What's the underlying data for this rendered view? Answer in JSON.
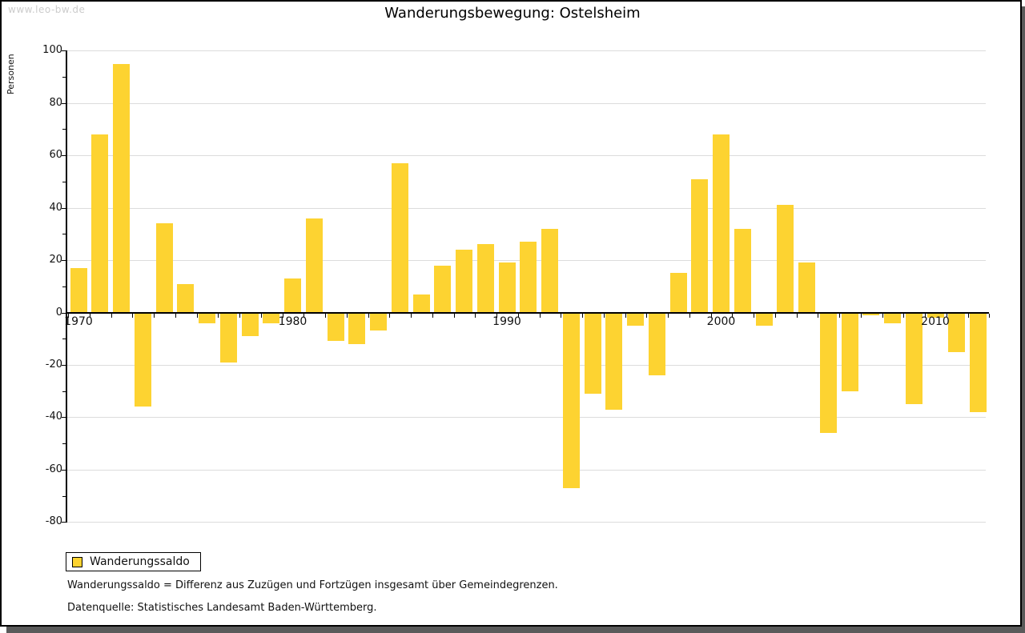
{
  "watermark": "www.leo-bw.de",
  "title": "Wanderungsbewegung: Ostelsheim",
  "y_axis_label": "Personen",
  "legend": {
    "label": "Wanderungssaldo"
  },
  "footnotes": [
    "Wanderungssaldo = Differenz aus Zuzügen und Fortzügen insgesamt über Gemeindegrenzen.",
    "Datenquelle: Statistisches Landesamt Baden-Württemberg."
  ],
  "colors": {
    "bar": "#fdd331",
    "grid": "#dcdcdc",
    "axis": "#000000",
    "text": "#111111",
    "watermark": "#cccccc",
    "shadow": "#5a5a5a",
    "background": "#ffffff"
  },
  "chart_data": {
    "type": "bar",
    "title": "Wanderungsbewegung: Ostelsheim",
    "xlabel": "",
    "ylabel": "Personen",
    "series_name": "Wanderungssaldo",
    "categories": [
      1970,
      1971,
      1972,
      1973,
      1974,
      1975,
      1976,
      1977,
      1978,
      1979,
      1980,
      1981,
      1982,
      1983,
      1984,
      1985,
      1986,
      1987,
      1988,
      1989,
      1990,
      1991,
      1992,
      1993,
      1994,
      1995,
      1996,
      1997,
      1998,
      1999,
      2000,
      2001,
      2002,
      2003,
      2004,
      2005,
      2006,
      2007,
      2008,
      2009,
      2010,
      2011,
      2012
    ],
    "values": [
      17,
      68,
      95,
      -36,
      34,
      11,
      -4,
      -19,
      -9,
      -4,
      13,
      36,
      -11,
      -12,
      -7,
      57,
      7,
      18,
      24,
      26,
      19,
      27,
      32,
      -67,
      -31,
      -37,
      -5,
      -24,
      15,
      51,
      68,
      32,
      -5,
      41,
      19,
      -46,
      -30,
      -1,
      -4,
      -35,
      -2,
      -15,
      -38
    ],
    "ylim": [
      -80,
      100
    ],
    "y_major_ticks": [
      100,
      80,
      60,
      40,
      20,
      0,
      -20,
      -40,
      -60,
      -80
    ],
    "y_minor_step": 10,
    "x_tick_labels": [
      "1970",
      "1980",
      "1990",
      "2000",
      "2010"
    ],
    "x_tick_indices": [
      0,
      10,
      20,
      30,
      40
    ],
    "grid": true,
    "legend_position": "bottom-left"
  }
}
